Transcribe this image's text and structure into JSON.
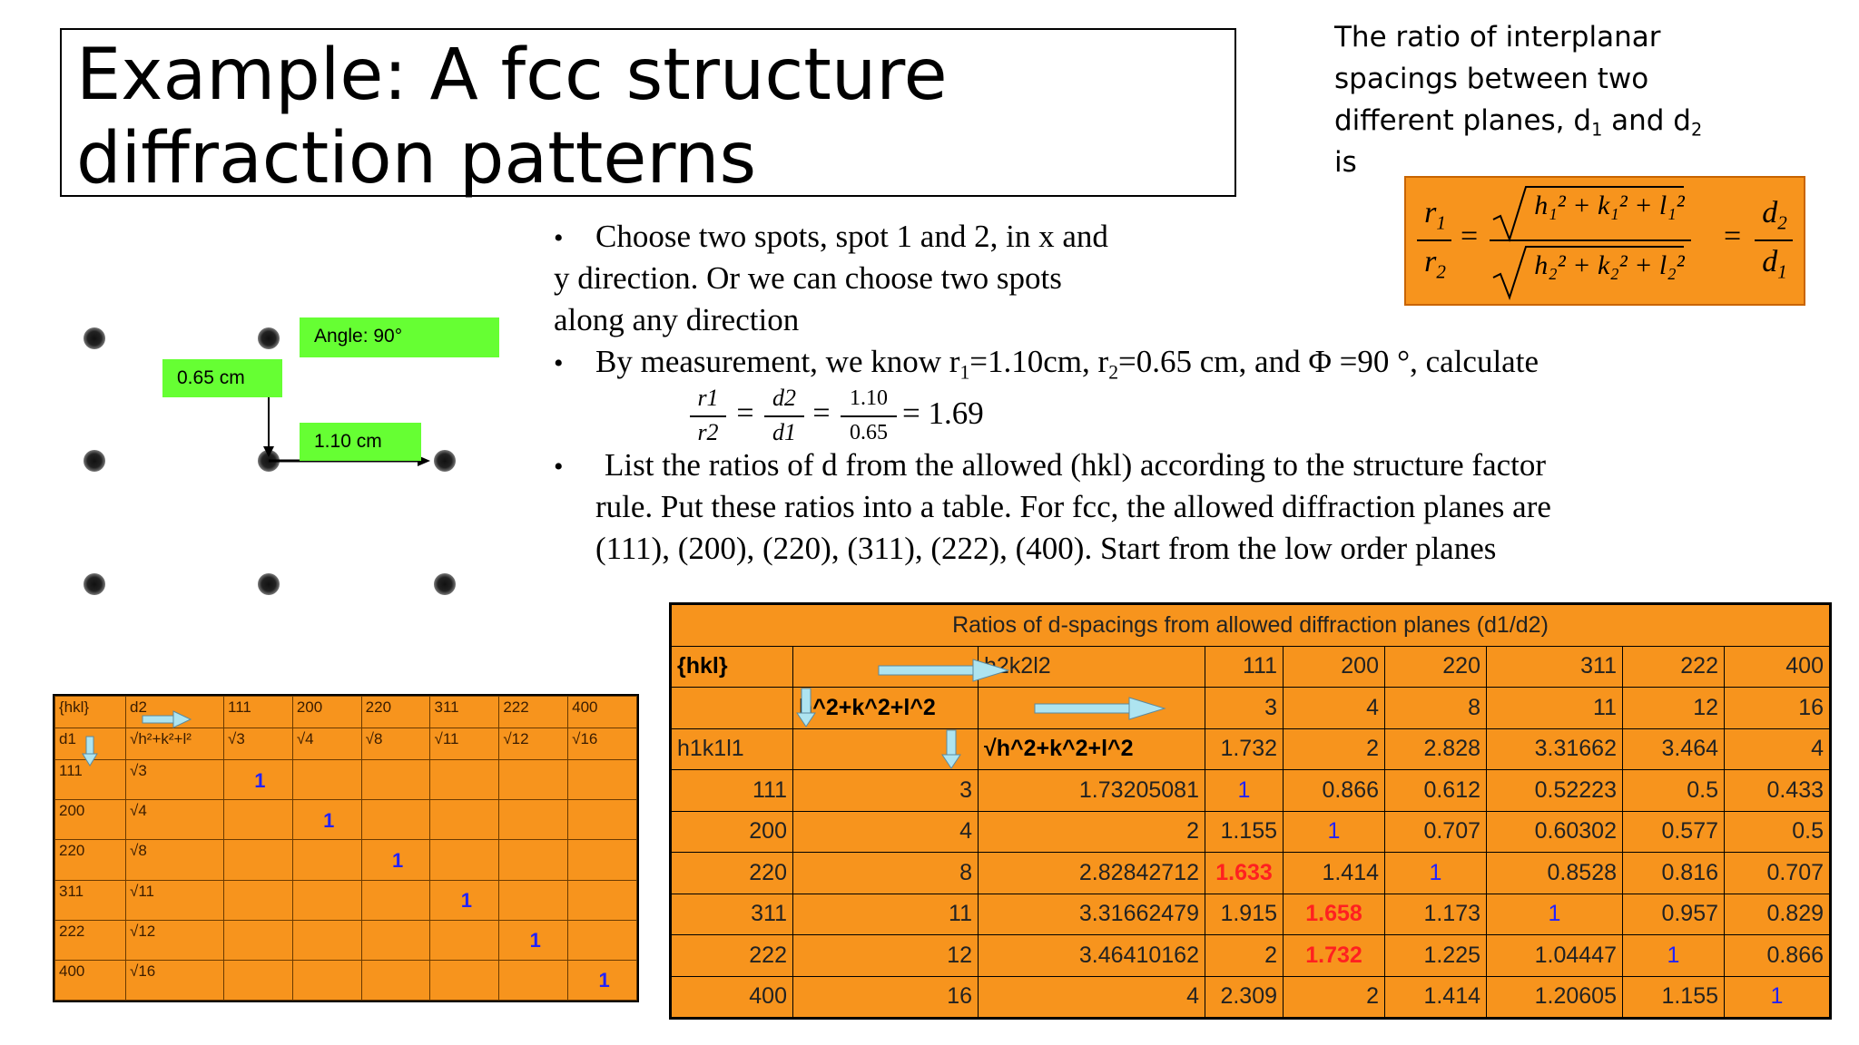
{
  "title": "Example: A fcc structure diffraction patterns",
  "ratio_note": {
    "line1": "The ratio of interplanar",
    "line2": "spacings between two",
    "line3a": "different planes, d",
    "sub1": "1",
    "line3b": " and d",
    "sub2": "2",
    "line4": "is"
  },
  "formula": {
    "lhs_num": "r",
    "lhs_num_sub": "1",
    "lhs_den": "r",
    "lhs_den_sub": "2",
    "mid_num": "h₁² + k₁² + l₁²",
    "mid_den": "h₂² + k₂² + l₂²",
    "rhs_num": "d",
    "rhs_num_sub": "2",
    "rhs_den": "d",
    "rhs_den_sub": "1",
    "eq": "="
  },
  "pattern": {
    "angle_label": "Angle: 90°",
    "r2_label": "0.65 cm",
    "r1_label": "1.10 cm"
  },
  "bullets": {
    "b1_l1": "Choose two spots, spot 1 and 2, in x and",
    "b1_l2": "y direction. Or we can choose two spots",
    "b1_l3": "along any direction",
    "b2_a": "By measurement, we know r",
    "b2_s1": "1",
    "b2_b": "=1.10cm, r",
    "b2_s2": "2",
    "b2_c": "=0.65 cm, and Φ =90 °, calculate",
    "m_r1": "r1",
    "m_r2": "r2",
    "m_d2": "d2",
    "m_d1": "d1",
    "m_110": "1.10",
    "m_065": "0.65",
    "m_eq": "=",
    "m_res": "= 1.69",
    "b3_l1": "List the ratios of d from the allowed (hkl) according to the structure factor",
    "b3_l2": "rule. Put these ratios into a table. For fcc, the allowed diffraction planes are",
    "b3_l3": "(111), (200), (220), (311), (222), (400). Start from the low order planes",
    "dot": "•"
  },
  "small_table": {
    "header": [
      "{hkl}",
      "d2",
      "111",
      "200",
      "220",
      "311",
      "222",
      "400"
    ],
    "row2": [
      "d1",
      "√h²+k²+l²",
      "√3",
      "√4",
      "√8",
      "√11",
      "√12",
      "√16"
    ],
    "rows": [
      {
        "hkl": "111",
        "d": "√3",
        "col": 0,
        "one": "1"
      },
      {
        "hkl": "200",
        "d": "√4",
        "col": 1,
        "one": "1"
      },
      {
        "hkl": "220",
        "d": "√8",
        "col": 2,
        "one": "1"
      },
      {
        "hkl": "311",
        "d": "√11",
        "col": 3,
        "one": "1"
      },
      {
        "hkl": "222",
        "d": "√12",
        "col": 4,
        "one": "1"
      },
      {
        "hkl": "400",
        "d": "√16",
        "col": 5,
        "one": "1"
      }
    ]
  },
  "big_table": {
    "caption": "Ratios of d-spacings from allowed diffraction planes (d1/d2)",
    "r1": [
      "{hkl}",
      "",
      "h2k2l2",
      "111",
      "200",
      "220",
      "311",
      "222",
      "400"
    ],
    "r2": [
      "",
      "h^2+k^2+l^2",
      "",
      "3",
      "4",
      "8",
      "11",
      "12",
      "16"
    ],
    "r3": [
      "h1k1l1",
      "",
      "√h^2+k^2+l^2",
      "1.732",
      "2",
      "2.828",
      "3.31662",
      "3.464",
      "4"
    ],
    "rows": [
      [
        "111",
        "3",
        "1.73205081",
        "1",
        "0.866",
        "0.612",
        "0.52223",
        "0.5",
        "0.433"
      ],
      [
        "200",
        "4",
        "2",
        "1.155",
        "1",
        "0.707",
        "0.60302",
        "0.577",
        "0.5"
      ],
      [
        "220",
        "8",
        "2.82842712",
        "1.633",
        "1.414",
        "1",
        "0.8528",
        "0.816",
        "0.707"
      ],
      [
        "311",
        "11",
        "3.31662479",
        "1.915",
        "1.658",
        "1.173",
        "1",
        "0.957",
        "0.829"
      ],
      [
        "222",
        "12",
        "3.46410162",
        "2",
        "1.732",
        "1.225",
        "1.04447",
        "1",
        "0.866"
      ],
      [
        "400",
        "16",
        "4",
        "2.309",
        "2",
        "1.414",
        "1.20605",
        "1.155",
        "1"
      ]
    ]
  },
  "colors": {
    "table_orange": "#f7941d",
    "label_green": "#66ff33",
    "one_blue": "#2222ff",
    "highlight_red": "#ff2020"
  }
}
